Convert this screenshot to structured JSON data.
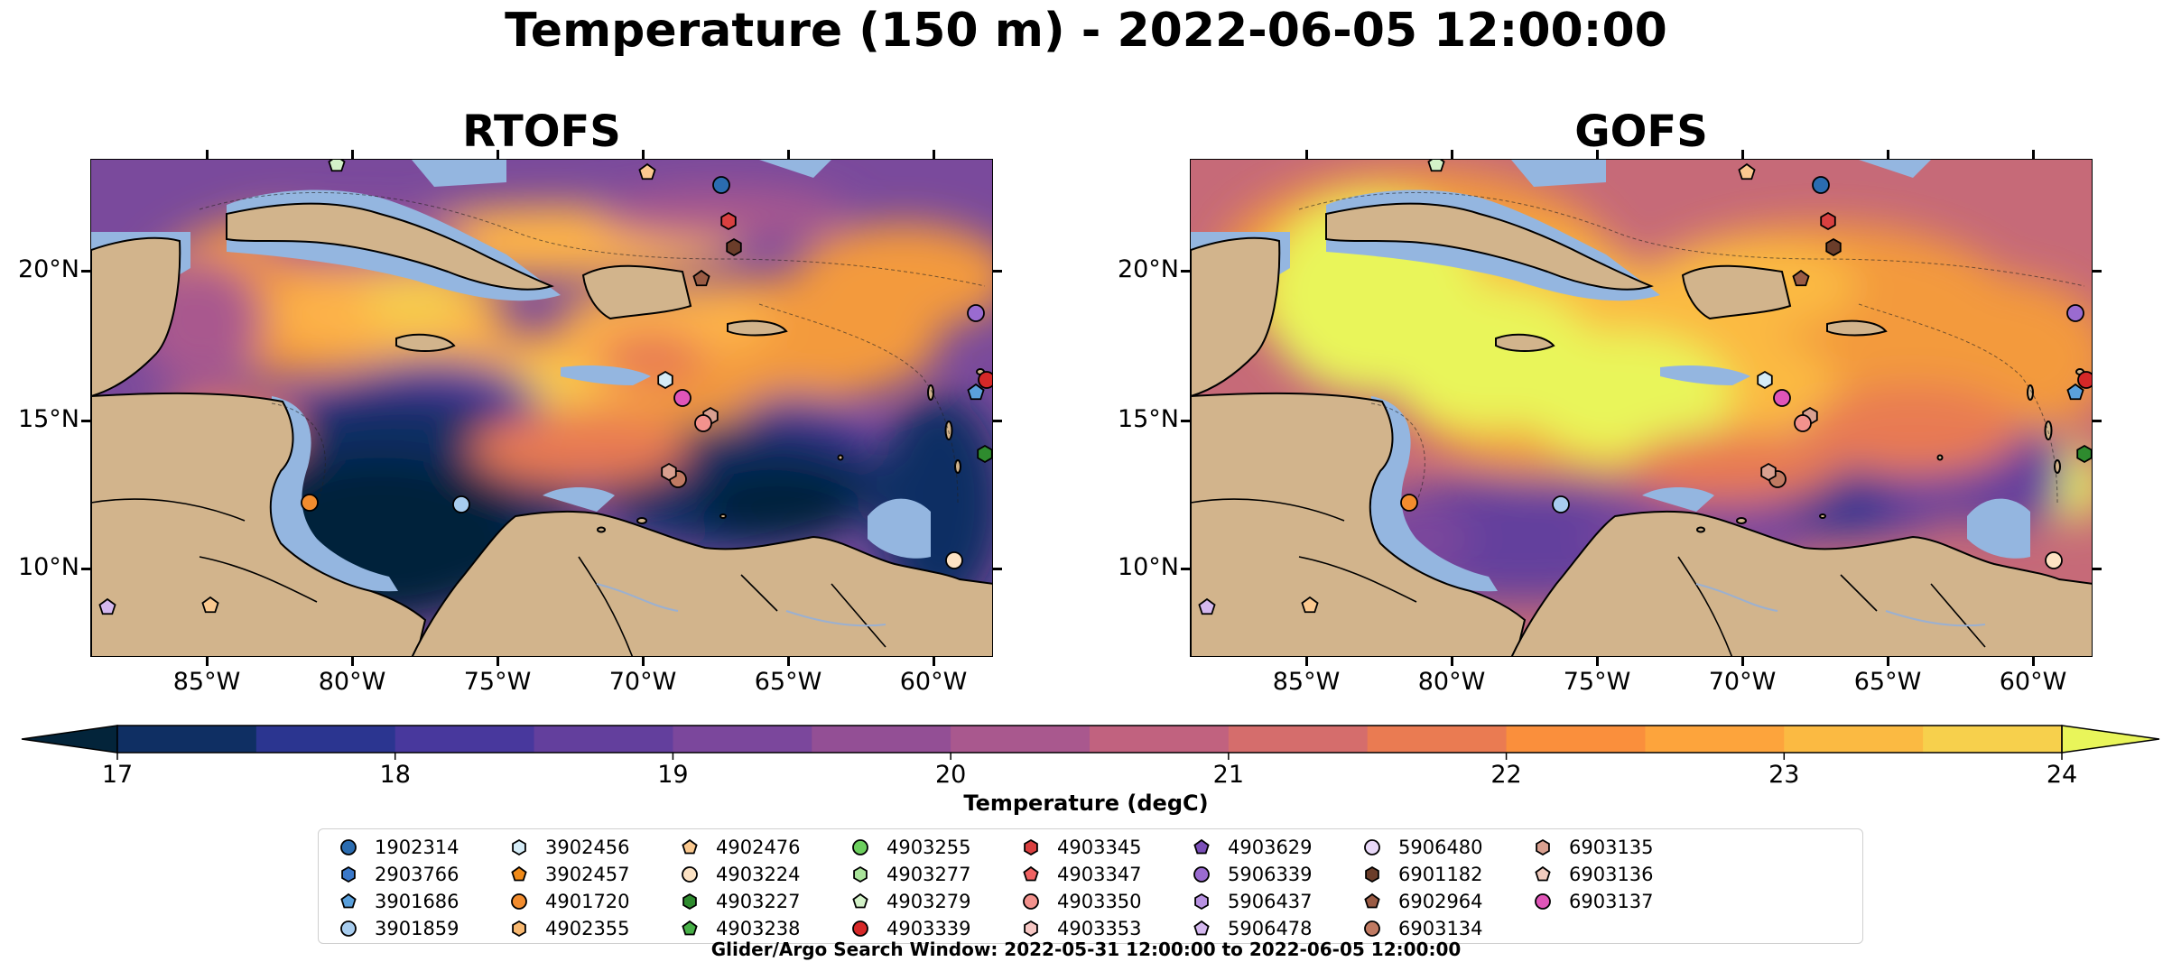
{
  "title": "Temperature (150 m) - 2022-06-05 12:00:00",
  "panels": [
    {
      "title": "RTOFS",
      "scheme": "rtofs"
    },
    {
      "title": "GOFS",
      "scheme": "gofs"
    }
  ],
  "axes": {
    "x_ticks": [
      "85°W",
      "80°W",
      "75°W",
      "70°W",
      "65°W",
      "60°W"
    ],
    "y_ticks": [
      "20°N",
      "15°N",
      "10°N"
    ]
  },
  "colorbar": {
    "label": "Temperature (degC)",
    "ticks": [
      "17",
      "18",
      "19",
      "20",
      "21",
      "22",
      "23",
      "24"
    ],
    "colors": [
      "#03243a",
      "#0f2f63",
      "#2b3590",
      "#48389d",
      "#633f9d",
      "#7b479c",
      "#934f95",
      "#a9588e",
      "#c1627f",
      "#d56d6c",
      "#ea7b52",
      "#fa8f3c",
      "#fda43c",
      "#fbba42",
      "#f7d04c",
      "#e9f55a"
    ]
  },
  "legend": {
    "items": [
      {
        "id": "1902314",
        "color": "#2b6cb0",
        "shape": "circle"
      },
      {
        "id": "2903766",
        "color": "#3a78c9",
        "shape": "hexagon"
      },
      {
        "id": "3901686",
        "color": "#5aa0dc",
        "shape": "pentagon"
      },
      {
        "id": "3901859",
        "color": "#a8cdef",
        "shape": "circle"
      },
      {
        "id": "3902456",
        "color": "#d5ecf7",
        "shape": "hexagon"
      },
      {
        "id": "3902457",
        "color": "#f08a18",
        "shape": "pentagon"
      },
      {
        "id": "4901720",
        "color": "#f28c2e",
        "shape": "circle"
      },
      {
        "id": "4902355",
        "color": "#f8b870",
        "shape": "hexagon"
      },
      {
        "id": "4902476",
        "color": "#fbc98f",
        "shape": "pentagon"
      },
      {
        "id": "4903224",
        "color": "#fde3c4",
        "shape": "circle"
      },
      {
        "id": "4903227",
        "color": "#2e8b2e",
        "shape": "hexagon"
      },
      {
        "id": "4903238",
        "color": "#48b048",
        "shape": "pentagon"
      },
      {
        "id": "4903255",
        "color": "#6ccf5e",
        "shape": "circle"
      },
      {
        "id": "4903277",
        "color": "#a9e39a",
        "shape": "hexagon"
      },
      {
        "id": "4903279",
        "color": "#d3f2c8",
        "shape": "pentagon"
      },
      {
        "id": "4903339",
        "color": "#d62828",
        "shape": "circle"
      },
      {
        "id": "4903345",
        "color": "#d94040",
        "shape": "hexagon"
      },
      {
        "id": "4903347",
        "color": "#f06262",
        "shape": "pentagon"
      },
      {
        "id": "4903350",
        "color": "#f3928d",
        "shape": "circle"
      },
      {
        "id": "4903353",
        "color": "#f6c7c4",
        "shape": "hexagon"
      },
      {
        "id": "4903629",
        "color": "#7b4fb8",
        "shape": "pentagon"
      },
      {
        "id": "5906339",
        "color": "#9a6bd0",
        "shape": "circle"
      },
      {
        "id": "5906437",
        "color": "#b892e2",
        "shape": "hexagon"
      },
      {
        "id": "5906478",
        "color": "#d4b8ef",
        "shape": "pentagon"
      },
      {
        "id": "5906480",
        "color": "#e8d8f7",
        "shape": "circle"
      },
      {
        "id": "6901182",
        "color": "#6b3d2a",
        "shape": "hexagon"
      },
      {
        "id": "6902964",
        "color": "#9a5b44",
        "shape": "pentagon"
      },
      {
        "id": "6903134",
        "color": "#c07a62",
        "shape": "circle"
      },
      {
        "id": "6903135",
        "color": "#d9a090",
        "shape": "hexagon"
      },
      {
        "id": "6903136",
        "color": "#f1cbbe",
        "shape": "pentagon"
      },
      {
        "id": "6903137",
        "color": "#e055b8",
        "shape": "circle"
      }
    ]
  },
  "footer": "Glider/Argo Search Window: 2022-05-31 12:00:00 to 2022-06-05 12:00:00"
}
